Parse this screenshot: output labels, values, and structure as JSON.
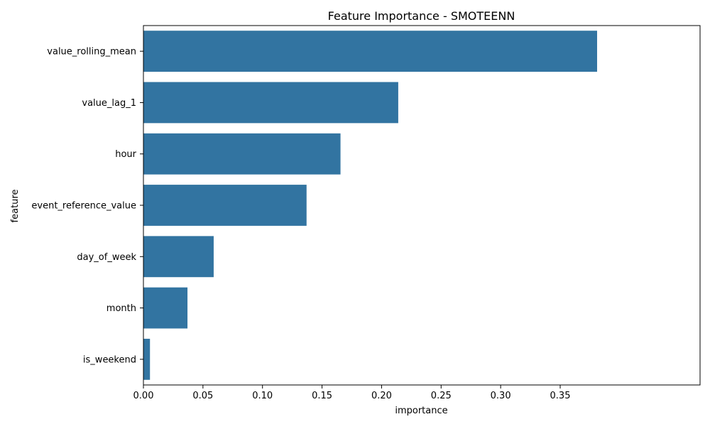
{
  "chart_data": {
    "type": "bar",
    "orientation": "horizontal",
    "title": "Feature Importance - SMOTEENN",
    "xlabel": "importance",
    "ylabel": "feature",
    "categories": [
      "value_rolling_mean",
      "value_lag_1",
      "hour",
      "event_reference_value",
      "day_of_week",
      "month",
      "is_weekend"
    ],
    "values": [
      0.381,
      0.214,
      0.1655,
      0.137,
      0.059,
      0.037,
      0.0055
    ],
    "xlim": [
      0,
      0.4
    ],
    "xticks": [
      0.0,
      0.05,
      0.1,
      0.15,
      0.2,
      0.25,
      0.3,
      0.35
    ],
    "xtick_labels": [
      "0.00",
      "0.05",
      "0.10",
      "0.15",
      "0.20",
      "0.25",
      "0.30",
      "0.35"
    ],
    "bar_color": "#3274a1",
    "grid": false,
    "legend": "none"
  }
}
